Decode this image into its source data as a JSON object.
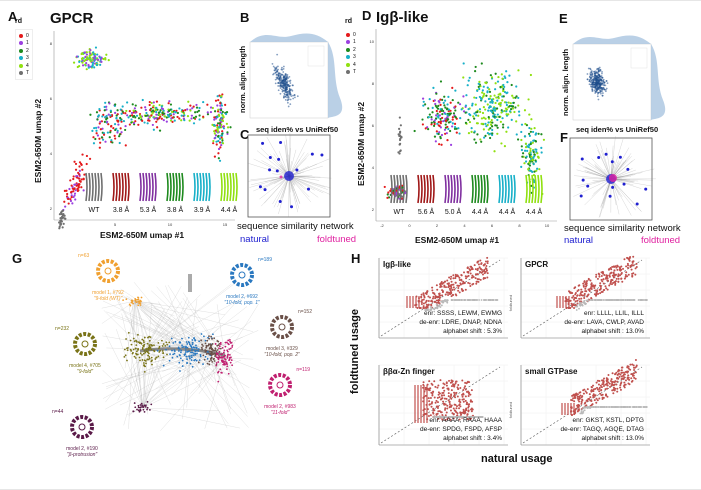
{
  "panels": {
    "A": {
      "letter": "A",
      "sub": "rd",
      "title": "GPCR",
      "xlabel": "ESM2-650M umap #1",
      "ylabel": "ESM2-650M umap #2",
      "structure_labels": [
        "WT",
        "3.8 Å",
        "5.3 Å",
        "3.8 Å",
        "3.9 Å",
        "4.4 Å"
      ],
      "xticks": [
        "0",
        "5",
        "10",
        "15"
      ],
      "yticks": [
        "2",
        "4",
        "6",
        "8"
      ]
    },
    "B": {
      "letter": "B",
      "xlabel": "seq iden% vs UniRef50",
      "ylabel": "norm. align. length"
    },
    "C": {
      "letter": "C",
      "caption": "sequence similarity network",
      "natural": "natural",
      "foldtuned": "foldtuned"
    },
    "D": {
      "letter": "D",
      "sub": "rd",
      "title": "Igβ-like",
      "xlabel": "ESM2-650M umap #1",
      "ylabel": "ESM2-650M umap #2",
      "structure_labels": [
        "WT",
        "5.6 Å",
        "5.0 Å",
        "4.4 Å",
        "4.4 Å",
        "4.4 Å"
      ],
      "xticks": [
        "-2",
        "0",
        "2",
        "4",
        "6",
        "8",
        "10"
      ],
      "yticks": [
        "2",
        "4",
        "6",
        "8",
        "10"
      ]
    },
    "E": {
      "letter": "E",
      "xlabel": "seq iden% vs UniRef50",
      "ylabel": "norm. align. length"
    },
    "F": {
      "letter": "F",
      "caption": "sequence similarity network",
      "natural": "natural",
      "foldtuned": "foldtuned"
    },
    "G": {
      "letter": "G",
      "clusters": [
        {
          "n": "n=63",
          "model": "model 1, #792",
          "desc": "\"9-fold (WT)\"",
          "color": "#f0a030"
        },
        {
          "n": "n=189",
          "model": "model 2, #692",
          "desc": "\"10-fold, pop. 1\"",
          "color": "#2a78c0"
        },
        {
          "n": "n=152",
          "model": "model 3, #329",
          "desc": "\"10-fold, pop. 2\"",
          "color": "#6a5048"
        },
        {
          "n": "n=232",
          "model": "model 4, #705",
          "desc": "\"9-fold\"",
          "color": "#7a7418"
        },
        {
          "n": "n=119",
          "model": "model 2, #983",
          "desc": "\"11-fold\"",
          "color": "#c02070"
        },
        {
          "n": "n=44",
          "model": "model 2, #190",
          "desc": "\"β-protrusion\"",
          "color": "#5a1a48"
        }
      ]
    },
    "H": {
      "letter": "H",
      "xlabel": "natural usage",
      "ylabel": "foldtuned usage",
      "inner_ylabel": "foldtuned"
    }
  },
  "legend": {
    "title": "rd",
    "items": [
      {
        "label": "0",
        "color": "#e41a1c"
      },
      {
        "label": "1",
        "color": "#9b40e0"
      },
      {
        "label": "2",
        "color": "#1e8a1e"
      },
      {
        "label": "3",
        "color": "#18b0c8"
      },
      {
        "label": "4",
        "color": "#90e010"
      },
      {
        "label": "T",
        "color": "#707070"
      }
    ]
  },
  "colors": {
    "natural": "#2020d0",
    "foldtuned": "#e020a0",
    "enriched": "#c0504d",
    "neutral": "#b8b8b8",
    "scatter": "#1f4e8c"
  },
  "chart_data": [
    {
      "type": "scatter",
      "panel": "A",
      "title": "GPCR",
      "xlabel": "ESM2-650M umap #1",
      "ylabel": "ESM2-650M umap #2",
      "xlim": [
        -3,
        15
      ],
      "ylim": [
        1,
        9.5
      ],
      "series": [
        "0",
        "1",
        "2",
        "3",
        "4",
        "T"
      ]
    },
    {
      "type": "scatter",
      "panel": "D",
      "title": "Igβ-like",
      "xlabel": "ESM2-650M umap #1",
      "ylabel": "ESM2-650M umap #2",
      "xlim": [
        -3,
        10
      ],
      "ylim": [
        1.5,
        11
      ],
      "series": [
        "0",
        "1",
        "2",
        "3",
        "4",
        "T"
      ]
    },
    {
      "type": "scatter",
      "panel": "H",
      "subplots": [
        {
          "title": "Igβ-like",
          "enr": "enr: SSSS, LEWM, EWMG",
          "deenr": "de-enr: LDRE, DNAP, NDNA",
          "shift": "alphabet shift : 5.3%"
        },
        {
          "title": "GPCR",
          "enr": "enr: LLLL, LLIL, ILLL",
          "deenr": "de-enr: LAVA, CWLP, AVAD",
          "shift": "alphabet shift : 13.0%"
        },
        {
          "title": "ββα-Zn finger",
          "enr": "enr: AAAA, RAAA, HAAA",
          "deenr": "de-enr: SPDG, FSPD, AFSP",
          "shift": "alphabet shift : 3.4%"
        },
        {
          "title": "small GTPase",
          "enr": "enr: GKST, KSTL, DPTG",
          "deenr": "de-enr: TAGQ, AGQE, DTAG",
          "shift": "alphabet shift : 13.0%"
        }
      ],
      "xlabel": "natural usage",
      "ylabel": "foldtuned usage",
      "scale": "log-log"
    }
  ]
}
